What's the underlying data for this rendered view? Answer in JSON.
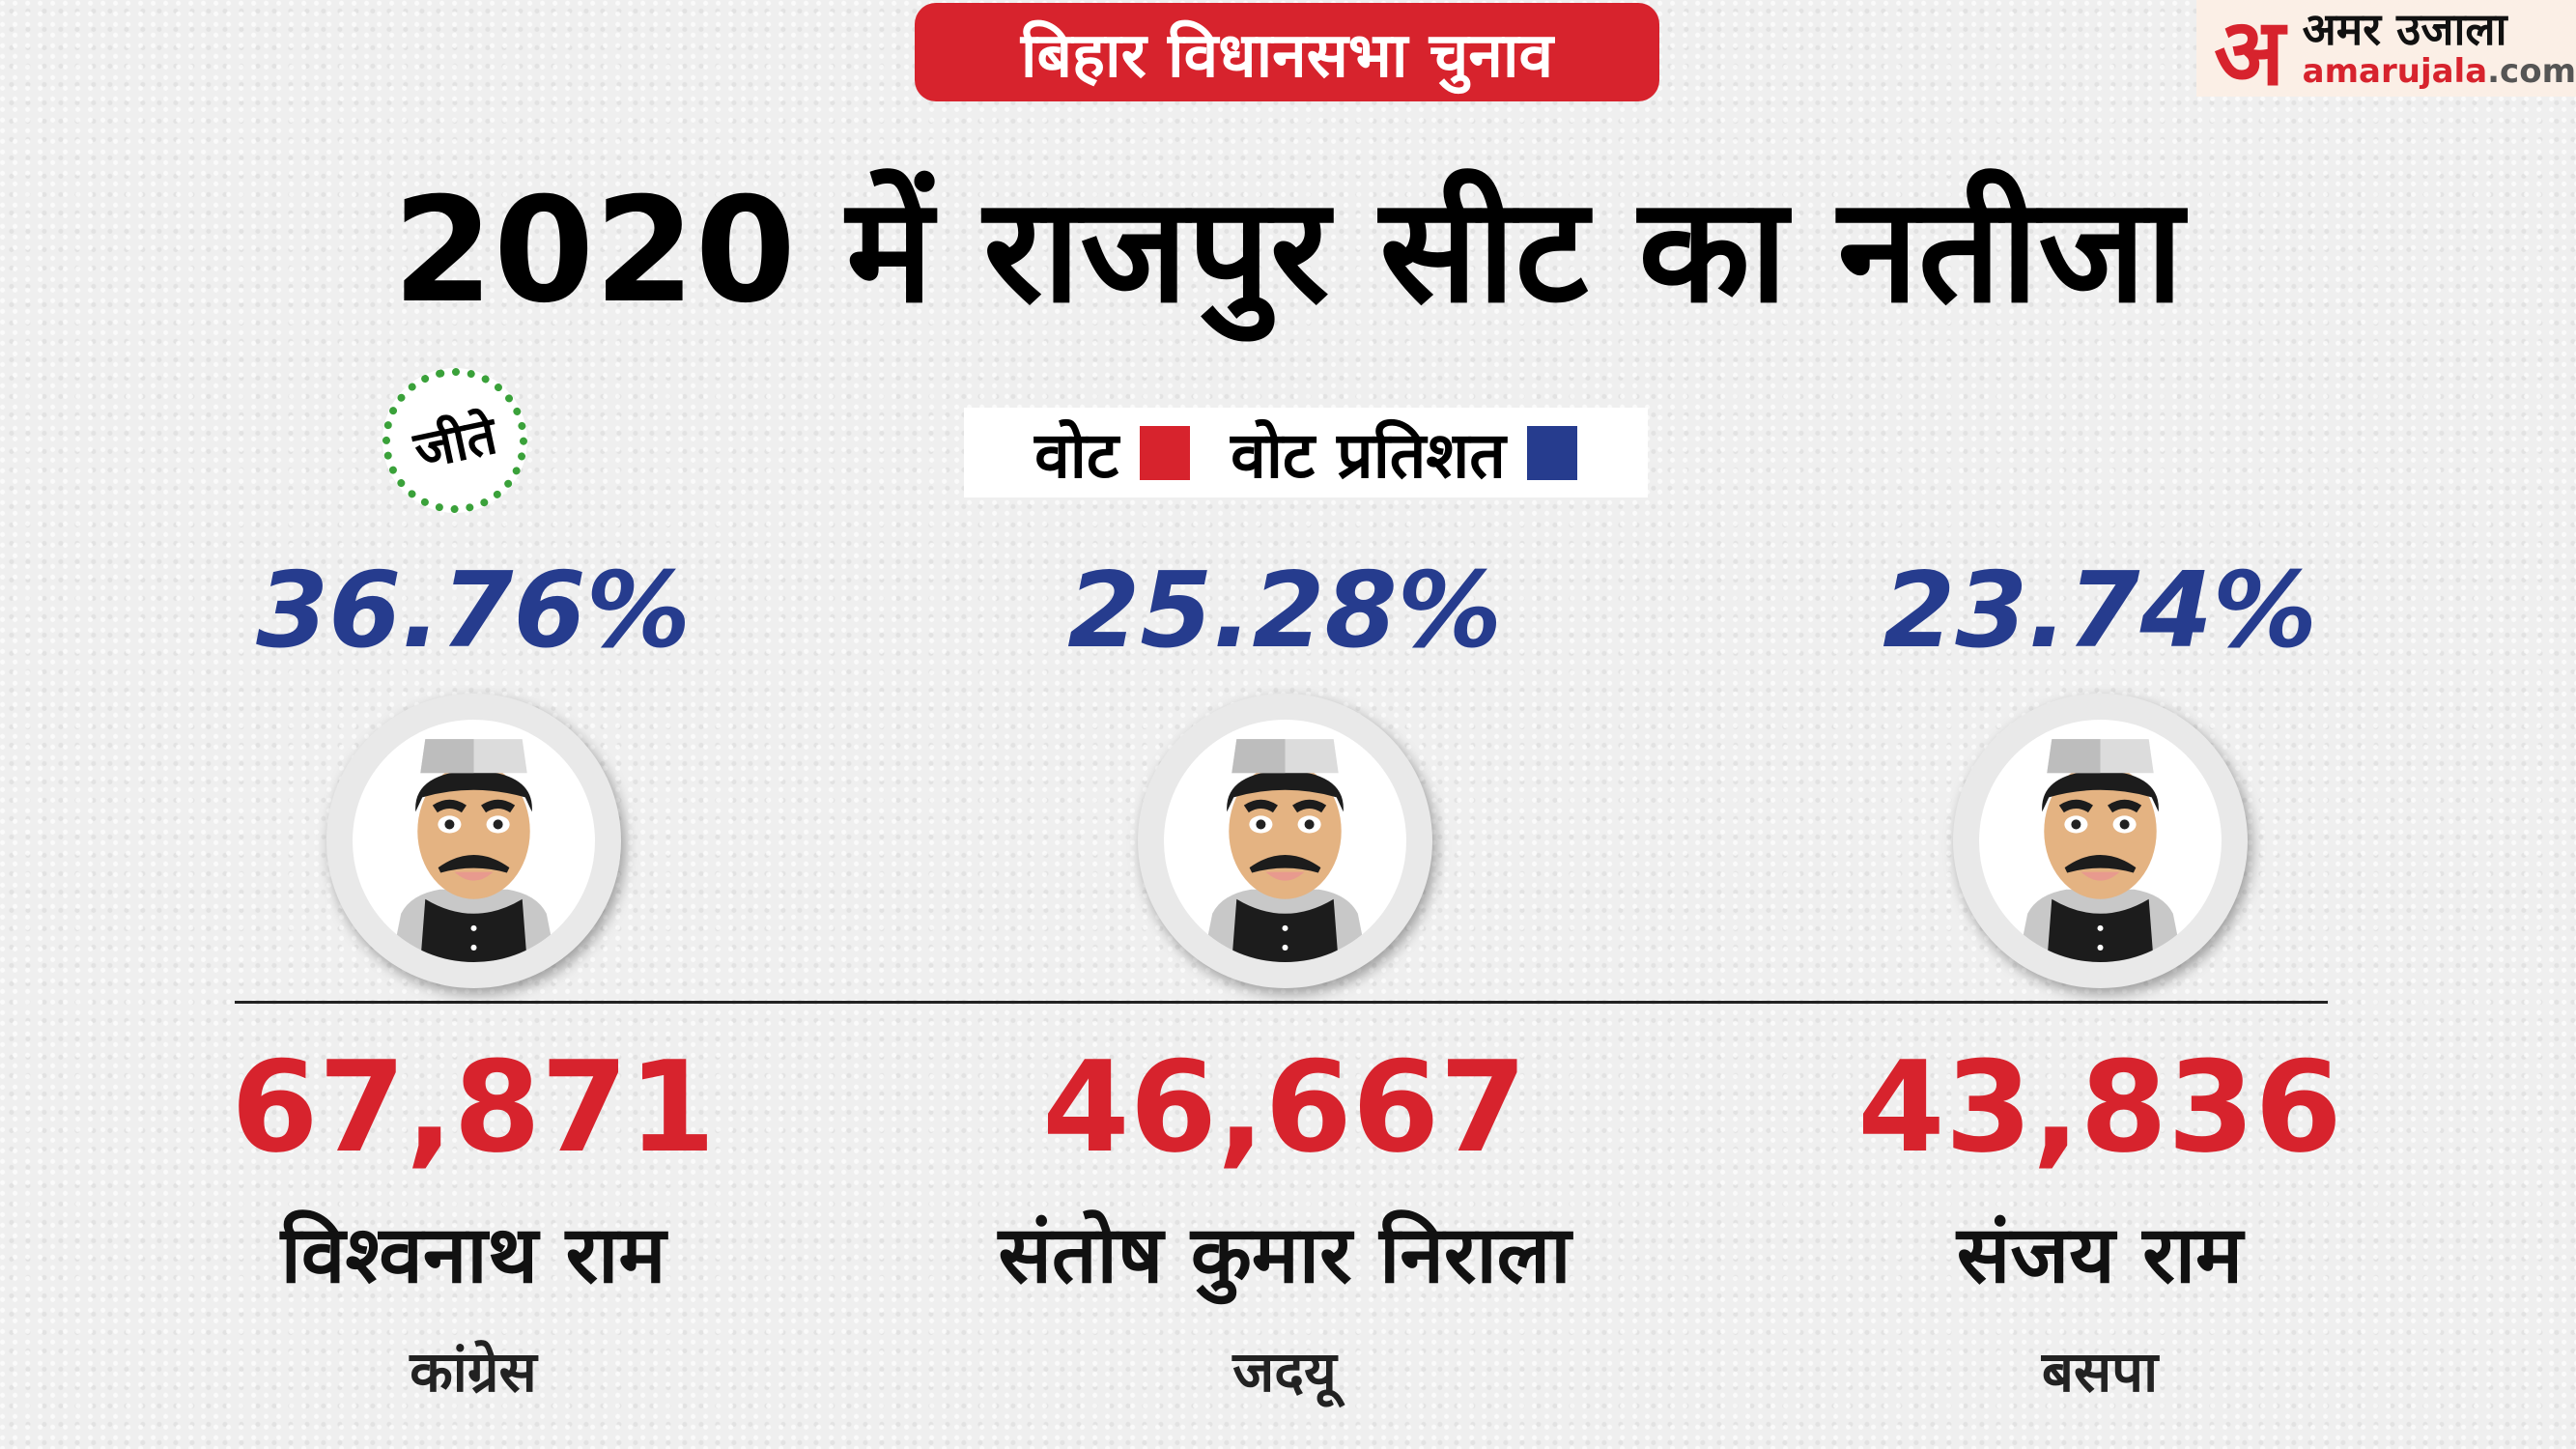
{
  "header": {
    "badge": "बिहार विधानसभा चुनाव",
    "logo_mark": "अ",
    "logo_hindi": "अमर उजाला",
    "logo_domain": "amarujala",
    "logo_tld": ".com"
  },
  "title": "2020 में राजपुर सीट का नतीजा",
  "legend": {
    "votes_label": "वोट",
    "votes_color": "#d7232d",
    "percent_label": "वोट प्रतिशत",
    "percent_color": "#263c8e"
  },
  "winner_badge": "जीते",
  "candidates": [
    {
      "percent": "36.76%",
      "votes": "67,871",
      "name": "विश्वनाथ राम",
      "party": "कांग्रेस"
    },
    {
      "percent": "25.28%",
      "votes": "46,667",
      "name": "संतोष कुमार निराला",
      "party": "जदयू"
    },
    {
      "percent": "23.74%",
      "votes": "43,836",
      "name": "संजय राम",
      "party": "बसपा"
    }
  ]
}
